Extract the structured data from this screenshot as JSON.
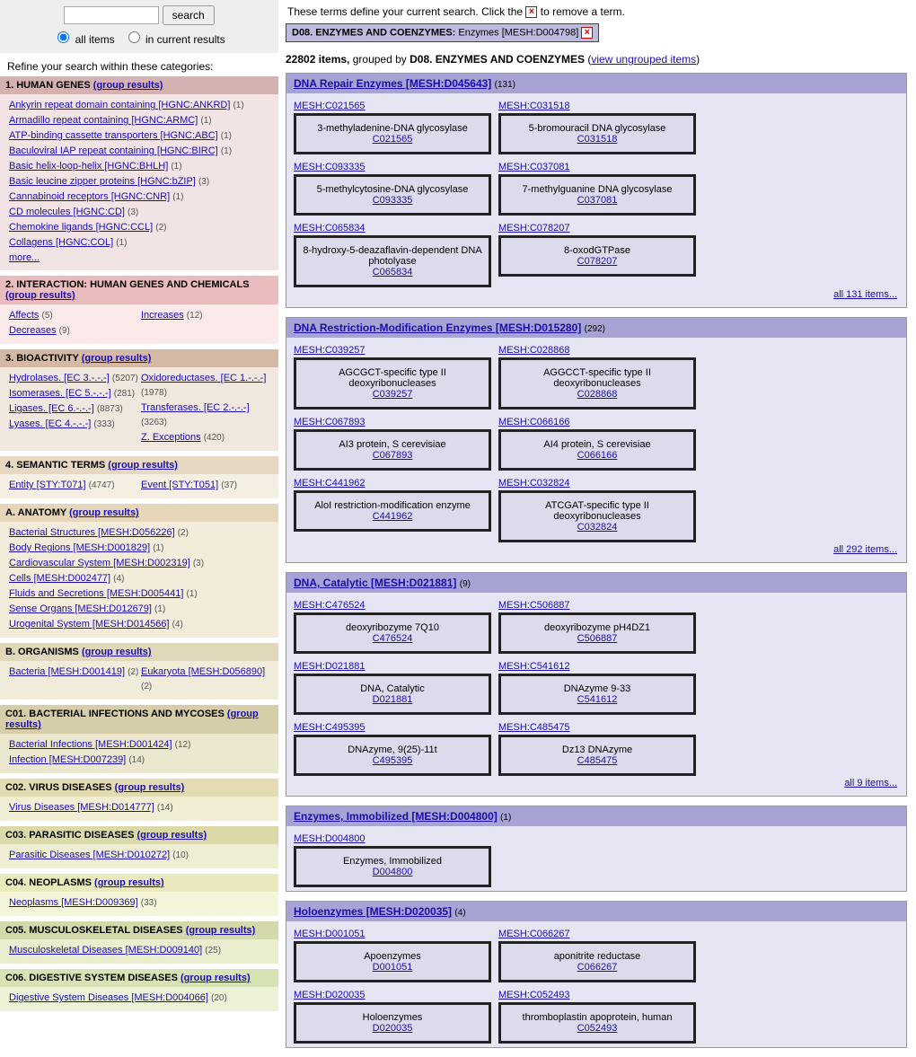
{
  "search": {
    "button": "search",
    "radio_all": "all items",
    "radio_cur": "in current results"
  },
  "refine_label": "Refine your search within these categories:",
  "group_results": "(group results)",
  "more": "more...",
  "categories": [
    {
      "title": "1. HUMAN GENES",
      "hbg": "#d4b2b2",
      "bbg": "#f2e4e4",
      "cols": 1,
      "items": [
        {
          "t": "Ankyrin repeat domain containing [HGNC:ANKRD]",
          "c": 1
        },
        {
          "t": "Armadillo repeat containing [HGNC:ARMC]",
          "c": 1
        },
        {
          "t": "ATP-binding cassette transporters [HGNC:ABC]",
          "c": 1
        },
        {
          "t": "Baculoviral IAP repeat containing [HGNC:BIRC]",
          "c": 1
        },
        {
          "t": "Basic helix-loop-helix [HGNC:BHLH]",
          "c": 1
        },
        {
          "t": "Basic leucine zipper proteins [HGNC:bZIP]",
          "c": 3
        },
        {
          "t": "Cannabinoid receptors [HGNC:CNR]",
          "c": 1
        },
        {
          "t": "CD molecules [HGNC:CD]",
          "c": 3
        },
        {
          "t": "Chemokine ligands [HGNC:CCL]",
          "c": 2
        },
        {
          "t": "Collagens [HGNC:COL]",
          "c": 1
        }
      ],
      "more": true
    },
    {
      "title": "2. INTERACTION: HUMAN GENES AND CHEMICALS",
      "hbg": "#e9bdbd",
      "bbg": "#fbeaea",
      "cols": 2,
      "col1": [
        {
          "t": "Affects",
          "c": 5
        },
        {
          "t": "Decreases",
          "c": 9
        }
      ],
      "col2": [
        {
          "t": "Increases",
          "c": 12
        }
      ]
    },
    {
      "title": "3. BIOACTIVITY",
      "hbg": "#d4baa5",
      "bbg": "#f0e7de",
      "cols": 2,
      "col1": [
        {
          "t": "Hydrolases. [EC 3.-.-.-]",
          "c": 5207
        },
        {
          "t": "Isomerases. [EC 5.-.-.-]",
          "c": 281
        },
        {
          "t": "Ligases. [EC 6.-.-.-]",
          "c": 8873
        },
        {
          "t": "Lyases. [EC 4.-.-.-]",
          "c": 333
        }
      ],
      "col2": [
        {
          "t": "Oxidoreductases. [EC 1.-.-.-]",
          "c": 1978
        },
        {
          "t": "Transferases. [EC 2.-.-.-]",
          "c": 3263
        },
        {
          "t": "Z. Exceptions",
          "c": 420
        }
      ]
    },
    {
      "title": "4. SEMANTIC TERMS",
      "hbg": "#e7d9c1",
      "bbg": "#f5efe3",
      "cols": 2,
      "col1": [
        {
          "t": "Entity [STY:T071]",
          "c": 4747
        }
      ],
      "col2": [
        {
          "t": "Event [STY:T051]",
          "c": 37
        }
      ]
    },
    {
      "title": "A. ANATOMY",
      "hbg": "#e5d6ba",
      "bbg": "#f4ecdb",
      "cols": 1,
      "items": [
        {
          "t": "Bacterial Structures [MESH:D056226]",
          "c": 2
        },
        {
          "t": "Body Regions [MESH:D001829]",
          "c": 1
        },
        {
          "t": "Cardiovascular System [MESH:D002319]",
          "c": 3
        },
        {
          "t": "Cells [MESH:D002477]",
          "c": 4
        },
        {
          "t": "Fluids and Secretions [MESH:D005441]",
          "c": 1
        },
        {
          "t": "Sense Organs [MESH:D012679]",
          "c": 1
        },
        {
          "t": "Urogenital System [MESH:D014566]",
          "c": 4
        }
      ]
    },
    {
      "title": "B. ORGANISMS",
      "hbg": "#e1d7bb",
      "bbg": "#f1ecd9",
      "cols": 2,
      "col1": [
        {
          "t": "Bacteria [MESH:D001419]",
          "c": 2
        }
      ],
      "col2": [
        {
          "t": "Eukaryota [MESH:D056890]",
          "c": 2
        }
      ]
    },
    {
      "title": "C01. BACTERIAL INFECTIONS AND MYCOSES",
      "hbg": "#d5cea8",
      "bbg": "#ece8d0",
      "cols": 1,
      "items": [
        {
          "t": "Bacterial Infections [MESH:D001424]",
          "c": 12
        },
        {
          "t": "Infection [MESH:D007239]",
          "c": 14
        }
      ]
    },
    {
      "title": "C02. VIRUS DISEASES",
      "hbg": "#e3dcb2",
      "bbg": "#f2eed3",
      "cols": 1,
      "items": [
        {
          "t": "Virus Diseases [MESH:D014777]",
          "c": 14
        }
      ]
    },
    {
      "title": "C03. PARASITIC DISEASES",
      "hbg": "#dcd9a9",
      "bbg": "#efedd2",
      "cols": 1,
      "items": [
        {
          "t": "Parasitic Diseases [MESH:D010272]",
          "c": 10
        }
      ]
    },
    {
      "title": "C04. NEOPLASMS",
      "hbg": "#e9e9bb",
      "bbg": "#f5f5da",
      "cols": 1,
      "items": [
        {
          "t": "Neoplasms [MESH:D009369]",
          "c": 33
        }
      ]
    },
    {
      "title": "C05. MUSCULOSKELETAL DISEASES",
      "hbg": "#d4d8aa",
      "bbg": "#ebedcf",
      "cols": 1,
      "items": [
        {
          "t": "Musculoskeletal Diseases [MESH:D009140]",
          "c": 25
        }
      ]
    },
    {
      "title": "C06. DIGESTIVE SYSTEM DISEASES",
      "hbg": "#d7e3b5",
      "bbg": "#ecf2d6",
      "cols": 1,
      "items": [
        {
          "t": "Digestive System Diseases [MESH:D004066]",
          "c": 20
        }
      ]
    }
  ],
  "top_note_a": "These terms define your current search. Click the",
  "top_note_b": "to remove a term.",
  "chip_label": "D08. ENZYMES AND COENZYMES:",
  "chip_value": "Enzymes [MESH:D004798]",
  "count_a": "22802 items,",
  "count_b": "grouped by",
  "count_c": "D08. ENZYMES AND COENZYMES",
  "count_link": "view ungrouped items",
  "groups": [
    {
      "title": "DNA Repair Enzymes [MESH:D045643]",
      "n": 131,
      "cards": [
        {
          "id": "MESH:C021565",
          "t": "3-methyladenine-DNA glycosylase",
          "c": "C021565"
        },
        {
          "id": "MESH:C031518",
          "t": "5-bromouracil DNA glycosylase",
          "c": "C031518"
        },
        {
          "id": "MESH:C093335",
          "t": "5-methylcytosine-DNA glycosylase",
          "c": "C093335"
        },
        {
          "id": "MESH:C037081",
          "t": "7-methylguanine DNA glycosylase",
          "c": "C037081"
        },
        {
          "id": "MESH:C065834",
          "t": "8-hydroxy-5-deazaflavin-dependent DNA photolyase",
          "c": "C065834"
        },
        {
          "id": "MESH:C078207",
          "t": "8-oxodGTPase",
          "c": "C078207"
        }
      ],
      "all": "all 131 items..."
    },
    {
      "title": "DNA Restriction-Modification Enzymes [MESH:D015280]",
      "n": 292,
      "cards": [
        {
          "id": "MESH:C039257",
          "t": "AGCGCT-specific type II deoxyribonucleases",
          "c": "C039257"
        },
        {
          "id": "MESH:C028868",
          "t": "AGGCCT-specific type II deoxyribonucleases",
          "c": "C028868"
        },
        {
          "id": "MESH:C067893",
          "t": "AI3 protein, S cerevisiae",
          "c": "C067893"
        },
        {
          "id": "MESH:C066166",
          "t": "AI4 protein, S cerevisiae",
          "c": "C066166"
        },
        {
          "id": "MESH:C441962",
          "t": "AloI restriction-modification enzyme",
          "c": "C441962"
        },
        {
          "id": "MESH:C032824",
          "t": "ATCGAT-specific type II deoxyribonucleases",
          "c": "C032824"
        }
      ],
      "all": "all 292 items..."
    },
    {
      "title": "DNA, Catalytic [MESH:D021881]",
      "n": 9,
      "cards": [
        {
          "id": "MESH:C476524",
          "t": "deoxyribozyme 7Q10",
          "c": "C476524"
        },
        {
          "id": "MESH:C506887",
          "t": "deoxyribozyme pH4DZ1",
          "c": "C506887"
        },
        {
          "id": "MESH:D021881",
          "t": "DNA, Catalytic",
          "c": "D021881"
        },
        {
          "id": "MESH:C541612",
          "t": "DNAzyme 9-33",
          "c": "C541612"
        },
        {
          "id": "MESH:C495395",
          "t": "DNAzyme, 9(25)-11t",
          "c": "C495395"
        },
        {
          "id": "MESH:C485475",
          "t": "Dz13 DNAzyme",
          "c": "C485475"
        }
      ],
      "all": "all 9 items..."
    },
    {
      "title": "Enzymes, Immobilized [MESH:D004800]",
      "n": 1,
      "cards": [
        {
          "id": "MESH:D004800",
          "t": "Enzymes, Immobilized",
          "c": "D004800"
        }
      ]
    },
    {
      "title": "Holoenzymes [MESH:D020035]",
      "n": 4,
      "cards": [
        {
          "id": "MESH:D001051",
          "t": "Apoenzymes",
          "c": "D001051"
        },
        {
          "id": "MESH:C066267",
          "t": "aponitrite reductase",
          "c": "C066267"
        },
        {
          "id": "MESH:D020035",
          "t": "Holoenzymes",
          "c": "D020035"
        },
        {
          "id": "MESH:C052493",
          "t": "thromboplastin apoprotein, human",
          "c": "C052493"
        }
      ]
    }
  ]
}
